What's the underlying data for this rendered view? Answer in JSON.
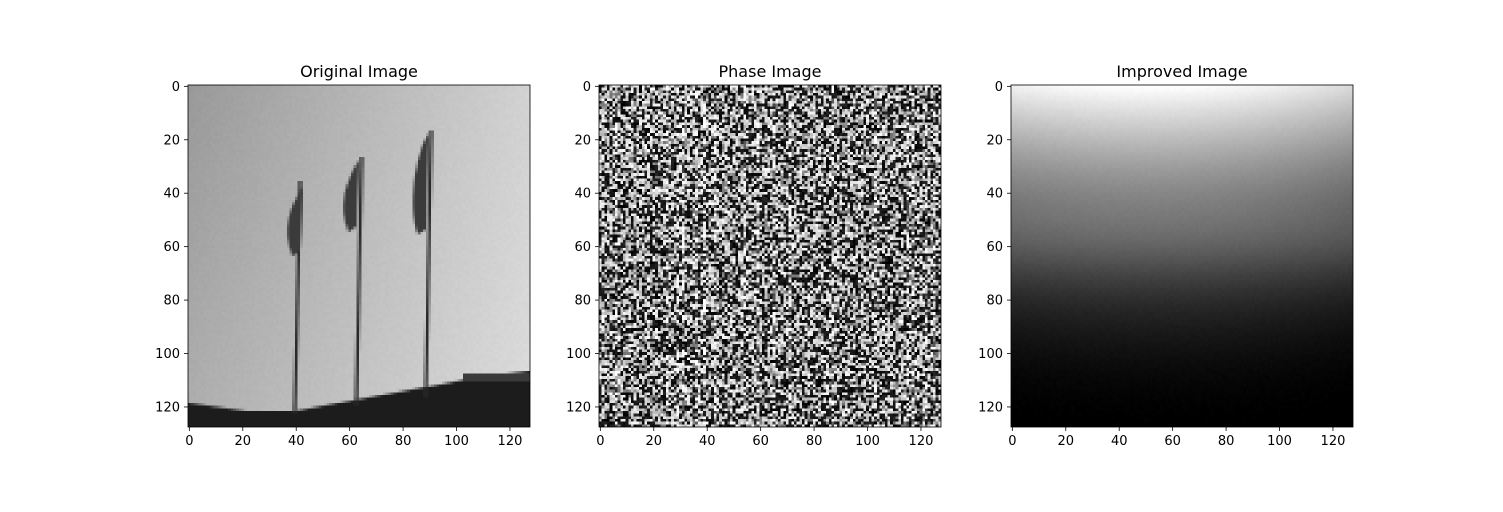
{
  "chart_data": [
    {
      "type": "heatmap",
      "title": "Original Image",
      "content": "grayscale photo: three flags on poles against bright sky, dark roofline at bottom",
      "image_size": [
        128,
        128
      ],
      "xlim": [
        0,
        127
      ],
      "ylim": [
        127,
        0
      ],
      "x_ticks": [
        0,
        20,
        40,
        60,
        80,
        100,
        120
      ],
      "y_ticks": [
        0,
        20,
        40,
        60,
        80,
        100,
        120
      ],
      "colormap": "gray"
    },
    {
      "type": "heatmap",
      "title": "Phase Image",
      "content": "high-frequency black/white noise with faint vertical streaks",
      "image_size": [
        128,
        128
      ],
      "xlim": [
        0,
        127
      ],
      "ylim": [
        127,
        0
      ],
      "x_ticks": [
        0,
        20,
        40,
        60,
        80,
        100,
        120
      ],
      "y_ticks": [
        0,
        20,
        40,
        60,
        80,
        100,
        120
      ],
      "colormap": "gray"
    },
    {
      "type": "heatmap",
      "title": "Improved Image",
      "content": "smooth vertical gradient: bright at top centre, fading to black at bottom",
      "image_size": [
        128,
        128
      ],
      "xlim": [
        0,
        127
      ],
      "ylim": [
        127,
        0
      ],
      "x_ticks": [
        0,
        20,
        40,
        60,
        80,
        100,
        120
      ],
      "y_ticks": [
        0,
        20,
        40,
        60,
        80,
        100,
        120
      ],
      "colormap": "gray"
    }
  ]
}
